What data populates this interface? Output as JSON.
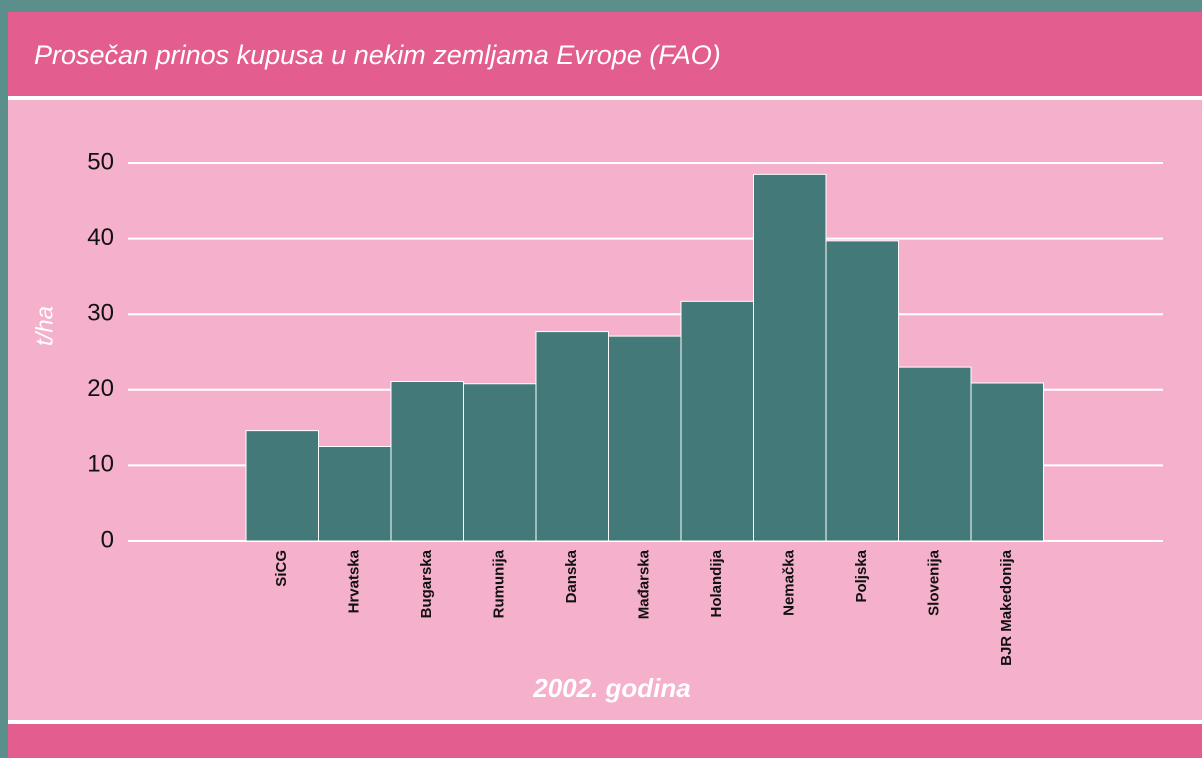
{
  "chart_data": {
    "type": "bar",
    "title": "Prosečan prinos kupusa u nekim zemljama Evrope (FAO)",
    "y_label": "t/ha",
    "x_label": "2002. godina",
    "categories": [
      "SiCG",
      "Hrvatska",
      "Bugarska",
      "Rumunija",
      "Danska",
      "Mađarska",
      "Holandija",
      "Nemačka",
      "Poljska",
      "Slovenija",
      "BJR Makedonija"
    ],
    "values": [
      14.6,
      12.5,
      21.1,
      20.8,
      27.7,
      27.1,
      31.7,
      48.5,
      39.7,
      23.0,
      20.9
    ],
    "color": "#437a79",
    "ylim": [
      0,
      50
    ],
    "yticks": [
      0,
      10,
      20,
      30,
      40,
      50
    ],
    "grid": true
  }
}
